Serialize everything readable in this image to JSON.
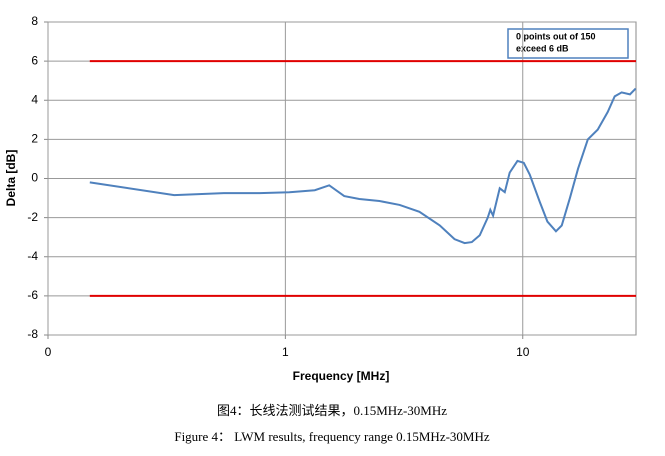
{
  "chart_data": {
    "type": "line",
    "y_label": "Delta [dB]",
    "x_label": "Frequency [MHz]",
    "annotation": [
      "0 points out of 150",
      "exceed 6 dB"
    ],
    "xscale": "log",
    "xlim": [
      0.1,
      30
    ],
    "xticks": [
      {
        "value": 0.1,
        "label": "0"
      },
      1,
      10
    ],
    "ylim": [
      -8,
      8
    ],
    "yticks": [
      -8,
      -6,
      -4,
      -2,
      0,
      2,
      4,
      6,
      8
    ],
    "grid": true,
    "series": [
      {
        "color": "#4f81bd",
        "x": [
          0.15,
          0.34,
          0.55,
          0.78,
          1.04,
          1.33,
          1.53,
          1.77,
          2.05,
          2.49,
          3.03,
          3.67,
          4.47,
          5.16,
          5.69,
          6.1,
          6.59,
          7.12,
          7.3,
          7.5,
          8.0,
          8.4,
          8.81,
          9.5,
          10.1,
          10.7,
          11.8,
          12.7,
          13.8,
          14.6,
          15.8,
          17.1,
          18.8,
          20.7,
          22.8,
          24.4,
          26.1,
          28.3,
          29.9
        ],
        "values": [
          -0.2,
          -0.85,
          -0.75,
          -0.75,
          -0.7,
          -0.6,
          -0.35,
          -0.9,
          -1.05,
          -1.15,
          -1.35,
          -1.7,
          -2.4,
          -3.1,
          -3.3,
          -3.25,
          -2.9,
          -2.0,
          -1.6,
          -1.9,
          -0.5,
          -0.7,
          0.3,
          0.9,
          0.8,
          0.2,
          -1.2,
          -2.2,
          -2.7,
          -2.4,
          -1.0,
          0.5,
          2.0,
          2.5,
          3.4,
          4.2,
          4.4,
          4.3,
          4.6
        ]
      },
      {
        "color": "#e00000",
        "x": [
          0.15,
          30
        ],
        "values": [
          6,
          6
        ]
      },
      {
        "color": "#e00000",
        "x": [
          0.15,
          30
        ],
        "values": [
          -6,
          -6
        ]
      }
    ]
  },
  "captions": [
    "图4：长线法测试结果，0.15MHz-30MHz",
    "Figure 4：   LWM results, frequency range 0.15MHz-30MHz"
  ]
}
